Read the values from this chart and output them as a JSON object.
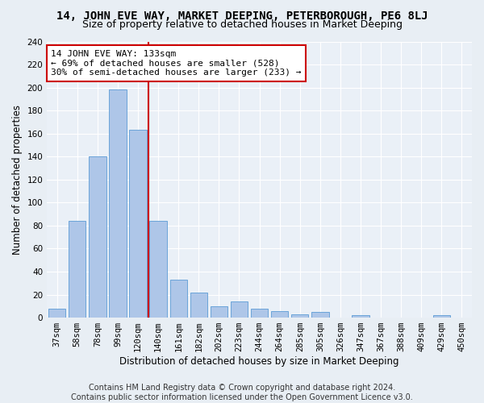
{
  "title": "14, JOHN EVE WAY, MARKET DEEPING, PETERBOROUGH, PE6 8LJ",
  "subtitle": "Size of property relative to detached houses in Market Deeping",
  "xlabel": "Distribution of detached houses by size in Market Deeping",
  "ylabel": "Number of detached properties",
  "categories": [
    "37sqm",
    "58sqm",
    "78sqm",
    "99sqm",
    "120sqm",
    "140sqm",
    "161sqm",
    "182sqm",
    "202sqm",
    "223sqm",
    "244sqm",
    "264sqm",
    "285sqm",
    "305sqm",
    "326sqm",
    "347sqm",
    "367sqm",
    "388sqm",
    "409sqm",
    "429sqm",
    "450sqm"
  ],
  "values": [
    8,
    84,
    140,
    198,
    163,
    84,
    33,
    22,
    10,
    14,
    8,
    6,
    3,
    5,
    0,
    2,
    0,
    0,
    0,
    2,
    0
  ],
  "bar_color": "#aec6e8",
  "bar_edge_color": "#5b9bd5",
  "vline_color": "#cc0000",
  "annotation_text": "14 JOHN EVE WAY: 133sqm\n← 69% of detached houses are smaller (528)\n30% of semi-detached houses are larger (233) →",
  "annotation_box_color": "#ffffff",
  "annotation_box_edge": "#cc0000",
  "ylim": [
    0,
    240
  ],
  "yticks": [
    0,
    20,
    40,
    60,
    80,
    100,
    120,
    140,
    160,
    180,
    200,
    220,
    240
  ],
  "footer": "Contains HM Land Registry data © Crown copyright and database right 2024.\nContains public sector information licensed under the Open Government Licence v3.0.",
  "bg_color": "#e8eef4",
  "plot_bg_color": "#eaf0f7",
  "title_fontsize": 10,
  "subtitle_fontsize": 9,
  "axis_label_fontsize": 8.5,
  "tick_fontsize": 7.5,
  "footer_fontsize": 7,
  "annotation_fontsize": 8
}
